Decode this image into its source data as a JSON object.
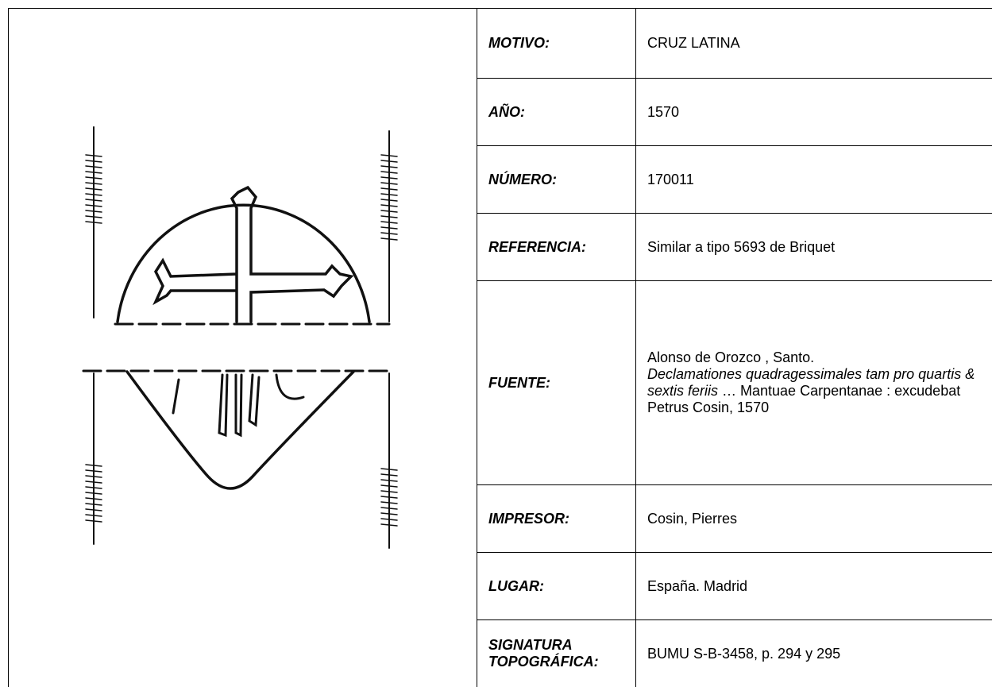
{
  "table": {
    "rows": [
      {
        "label": "MOTIVO:",
        "value": "CRUZ LATINA"
      },
      {
        "label": "AÑO:",
        "value": "1570"
      },
      {
        "label": "NÚMERO:",
        "value": "170011"
      },
      {
        "label": "REFERENCIA:",
        "value": "Similar a tipo 5693 de Briquet"
      },
      {
        "label": "FUENTE:",
        "value": [
          "Alonso de Orozco , Santo.",
          "Declamationes quadragessimales tam pro quartis & sextis feriis",
          "  … Mantuae Carpentanae : excudebat Petrus Cosin, 1570"
        ]
      },
      {
        "label": "IMPRESOR:",
        "value": "Cosin, Pierres"
      },
      {
        "label": "LUGAR:",
        "value": "España. Madrid"
      },
      {
        "label": "SIGNATURA TOPOGRÁFICA:",
        "value": "BUMU S-B-3458, p. 294 y 295"
      }
    ]
  }
}
